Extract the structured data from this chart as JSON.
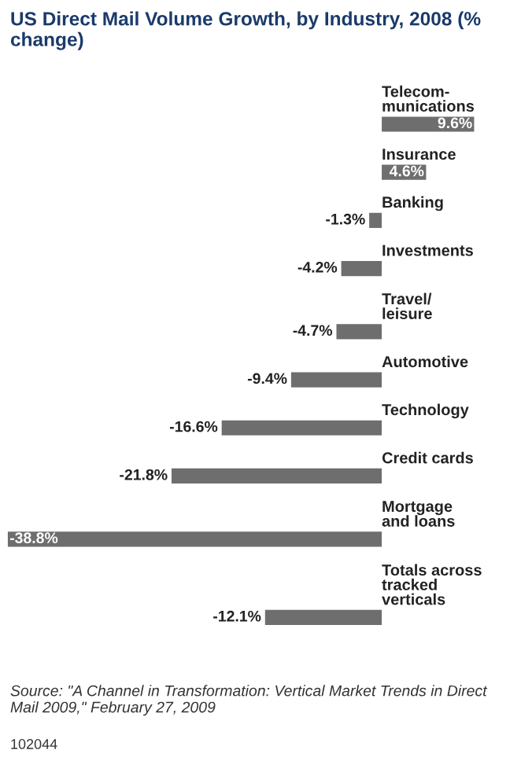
{
  "chart_data": {
    "type": "bar",
    "orientation": "horizontal",
    "data_labels": true,
    "title": "US Direct Mail Volume Growth, by Industry, 2008 (% change)",
    "categories": [
      "Telecom-\nmunications",
      "Insurance",
      "Banking",
      "Investments",
      "Travel/\nleisure",
      "Automotive",
      "Technology",
      "Credit cards",
      "Mortgage\nand loans",
      "Totals across\ntracked\nverticals"
    ],
    "values": [
      9.6,
      4.6,
      -1.3,
      -4.2,
      -4.7,
      -9.4,
      -16.6,
      -21.8,
      -38.8,
      -12.1
    ],
    "value_labels": [
      "9.6%",
      "4.6%",
      "-1.3%",
      "-4.2%",
      "-4.7%",
      "-9.4%",
      "-16.6%",
      "-21.8%",
      "-38.8%",
      "-12.1%"
    ],
    "color": "#6e6e6e",
    "annotations": [
      "Source: \"A Channel in Transformation: Vertical Market Trends in Direct Mail 2009,\" February 27, 2009",
      "102044"
    ]
  }
}
